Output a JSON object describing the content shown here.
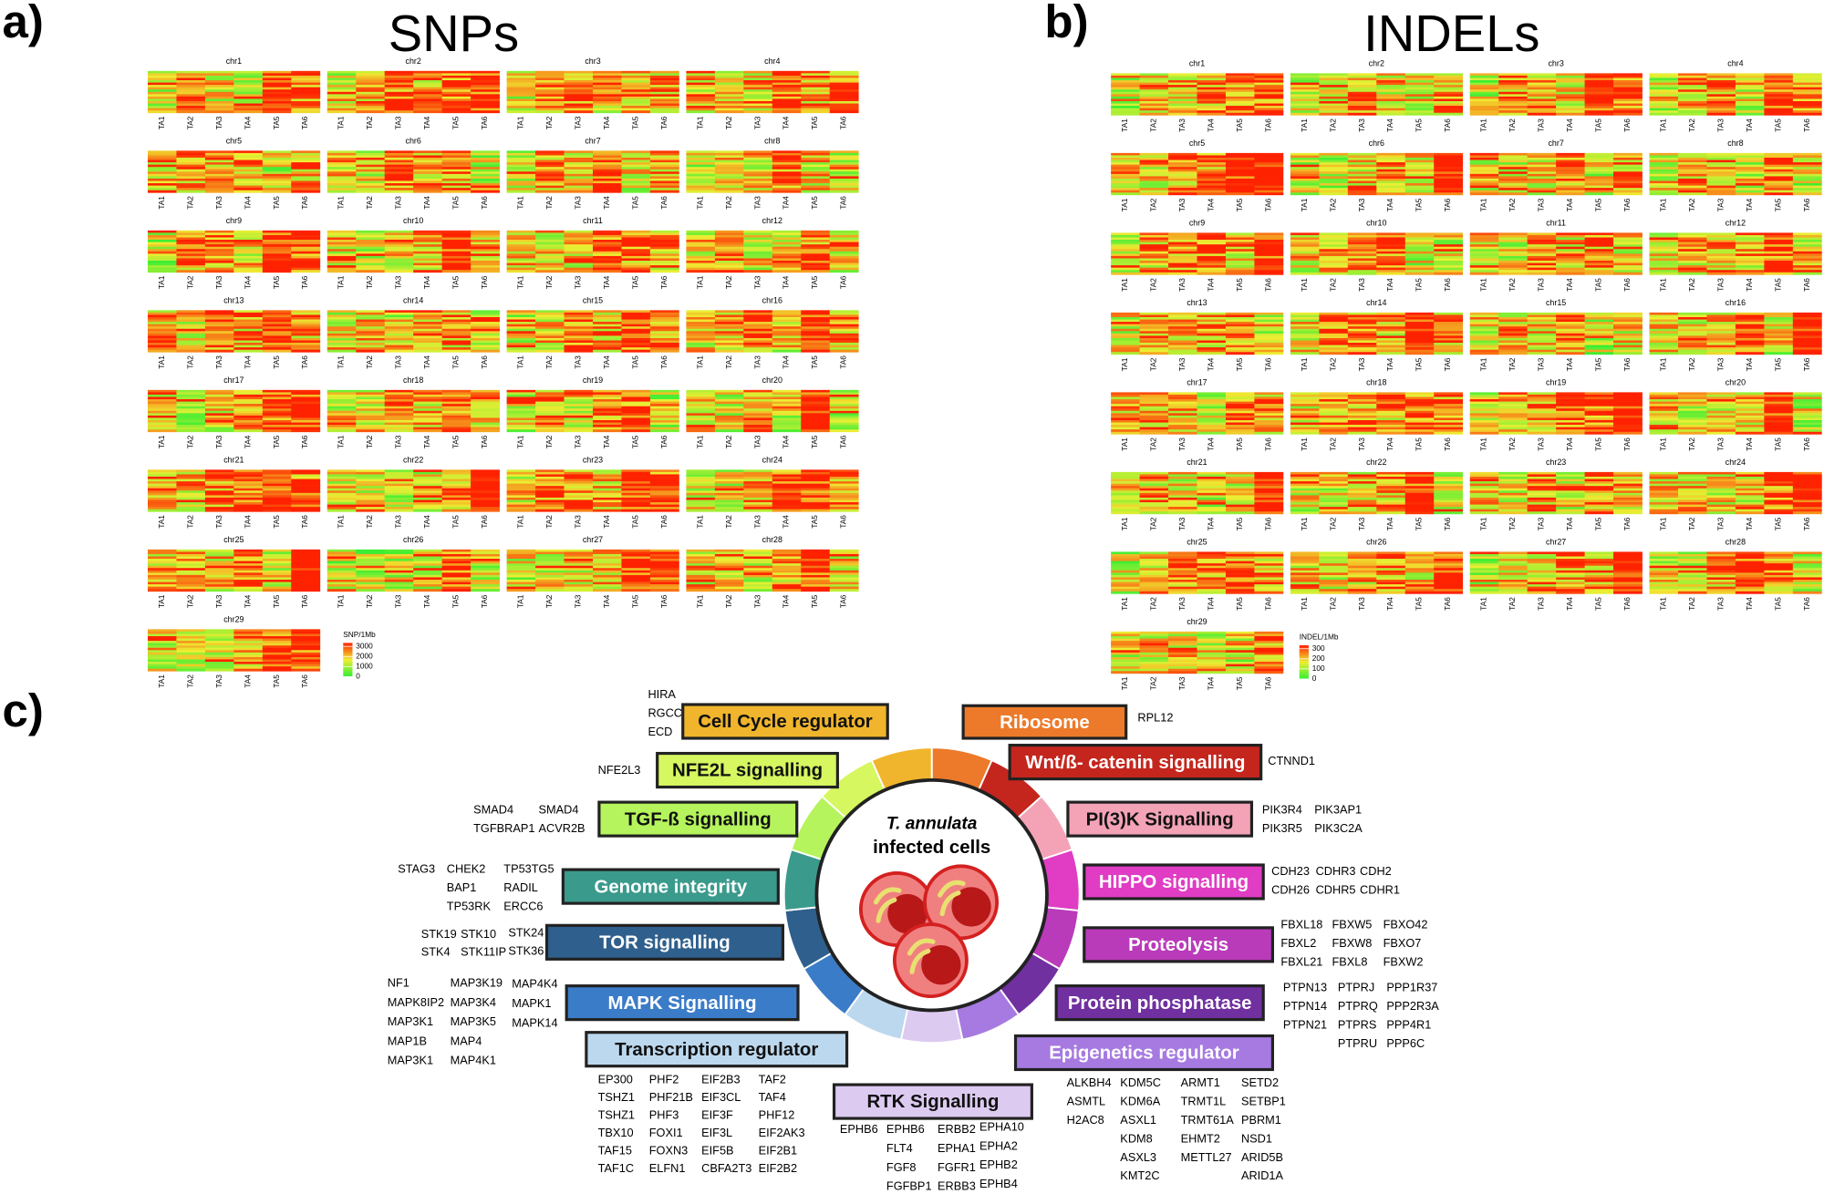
{
  "panels": [
    {
      "label": "a)",
      "title": "SNPs",
      "chromosomes": [
        "chr1",
        "chr2",
        "chr3",
        "chr4",
        "chr5",
        "chr6",
        "chr7",
        "chr8",
        "chr9",
        "chr10",
        "chr11",
        "chr12",
        "chr13",
        "chr14",
        "chr15",
        "chr16",
        "chr17",
        "chr18",
        "chr19",
        "chr20",
        "chr21",
        "chr22",
        "chr23",
        "chr24",
        "chr25",
        "chr26",
        "chr27",
        "chr28",
        "chr29"
      ],
      "samples": [
        "TA1",
        "TA2",
        "TA3",
        "TA4",
        "TA5",
        "TA6"
      ],
      "legend": {
        "title": "SNP/1Mb",
        "ticks": [
          3000,
          2000,
          1000,
          0
        ]
      }
    },
    {
      "label": "b)",
      "title": "INDELs",
      "chromosomes": [
        "chr1",
        "chr2",
        "chr3",
        "chr4",
        "chr5",
        "chr6",
        "chr7",
        "chr8",
        "chr9",
        "chr10",
        "chr11",
        "chr12",
        "chr13",
        "chr14",
        "chr15",
        "chr16",
        "chr17",
        "chr18",
        "chr19",
        "chr20",
        "chr21",
        "chr22",
        "chr23",
        "chr24",
        "chr25",
        "chr26",
        "chr27",
        "chr28",
        "chr29"
      ],
      "samples": [
        "TA1",
        "TA2",
        "TA3",
        "TA4",
        "TA5",
        "TA6"
      ],
      "legend": {
        "title": "INDEL/1Mb",
        "ticks": [
          300,
          200,
          100,
          0
        ]
      }
    }
  ],
  "pathways": {
    "label": "c)",
    "center": [
      "T. annulata",
      "infected cells"
    ],
    "categories": [
      {
        "name": "Ribosome",
        "color": "#ec7a2a",
        "genes": [
          [
            "RPL12"
          ]
        ]
      },
      {
        "name": "Wnt/ß- catenin signalling",
        "color": "#c4261e",
        "genes": [
          [
            "CTNND1"
          ]
        ]
      },
      {
        "name": "PI(3)K Signalling",
        "color": "#f4a3b7",
        "genes": [
          [
            "PIK3R4",
            "PIK3R5"
          ],
          [
            "PIK3AP1",
            "PIK3C2A"
          ]
        ]
      },
      {
        "name": "HIPPO signalling",
        "color": "#e03cc4",
        "genes": [
          [
            "CDH23",
            "CDH26"
          ],
          [
            "CDHR3",
            "CDHR5"
          ],
          [
            "CDH2",
            "CDHR1"
          ]
        ]
      },
      {
        "name": "Proteolysis",
        "color": "#b93bba",
        "genes": [
          [
            "FBXL18",
            "FBXL2",
            "FBXL21"
          ],
          [
            "FBXW5",
            "FBXW8",
            "FBXL8"
          ],
          [
            "FBXO42",
            "FBXO7",
            "FBXW2"
          ]
        ]
      },
      {
        "name": "Protein phosphatase",
        "color": "#7030a0",
        "genes": [
          [
            "PTPN13",
            "PTPN14",
            "PTPN21"
          ],
          [
            "PTPRJ",
            "PTPRQ",
            "PTPRS",
            "PTPRU"
          ],
          [
            "PPP1R37",
            "PPP2R3A",
            "PPP4R1",
            "PPP6C"
          ]
        ]
      },
      {
        "name": "Epigenetics regulator",
        "color": "#a67ae0",
        "genes": [
          [
            "ALKBH4",
            "ASMTL",
            "H2AC8"
          ],
          [
            "KDM5C",
            "KDM6A",
            "ASXL1",
            "KDM8",
            "ASXL3",
            "KMT2C"
          ],
          [
            "ARMT1",
            "TRMT1L",
            "TRMT61A",
            "EHMT2",
            "METTL27"
          ],
          [
            "SETD2",
            "SETBP1",
            "PBRM1",
            "NSD1",
            "ARID5B",
            "ARID1A"
          ]
        ]
      },
      {
        "name": "RTK Signalling",
        "color": "#dccaf0",
        "genes": [
          [
            "EPHB6"
          ],
          [
            "EPHB6",
            "FLT4",
            "FGF8",
            "FGFBP1"
          ],
          [
            "ERBB2",
            "EPHA1",
            "FGFR1",
            "ERBB3"
          ],
          [
            "EPHA10",
            "EPHA2",
            "EPHB2",
            "EPHB4"
          ]
        ]
      },
      {
        "name": "Transcription regulator",
        "color": "#bcd8ee",
        "genes": [
          [
            "EP300",
            "TSHZ1",
            "TSHZ1",
            "TBX10",
            "TAF15",
            "TAF1C"
          ],
          [
            "PHF2",
            "PHF21B",
            "PHF3",
            "FOXI1",
            "FOXN3",
            "ELFN1"
          ],
          [
            "EIF2B3",
            "EIF3CL",
            "EIF3F",
            "EIF3L",
            "EIF5B",
            "CBFA2T3"
          ],
          [
            "TAF2",
            "TAF4",
            "PHF12",
            "EIF2AK3",
            "EIF2B1",
            "EIF2B2"
          ]
        ]
      },
      {
        "name": "MAPK Signalling",
        "color": "#3b7cc8",
        "genes": [
          [
            "NF1",
            "MAPK8IP2",
            "MAP3K1",
            "MAP1B",
            "MAP3K1"
          ],
          [
            "MAP3K19",
            "MAP3K4",
            "MAP3K5",
            "MAP4",
            "MAP4K1"
          ],
          [
            "MAP4K4",
            "MAPK1",
            "MAPK14"
          ]
        ]
      },
      {
        "name": "TOR signalling",
        "color": "#2f5f8c",
        "genes": [
          [
            "STK19",
            "STK4"
          ],
          [
            "STK10",
            "STK11IP"
          ],
          [
            "STK24",
            "STK36"
          ]
        ]
      },
      {
        "name": "Genome integrity",
        "color": "#3a9a8c",
        "genes": [
          [
            "STAG3"
          ],
          [
            "CHEK2",
            "BAP1",
            "TP53RK"
          ],
          [
            "TP53TG5",
            "RADIL",
            "ERCC6"
          ]
        ]
      },
      {
        "name": "TGF-ß signalling",
        "color": "#b5f45c",
        "genes": [
          [
            "SMAD4",
            "TGFBRAP1"
          ],
          [
            "SMAD4",
            "ACVR2B"
          ]
        ]
      },
      {
        "name": "NFE2L signalling",
        "color": "#d6f760",
        "genes": [
          [
            "NFE2L3"
          ]
        ]
      },
      {
        "name": "Cell Cycle regulator",
        "color": "#f0b52c",
        "genes": [
          [
            "HIRA",
            "RGCC",
            "ECD"
          ]
        ]
      }
    ]
  }
}
